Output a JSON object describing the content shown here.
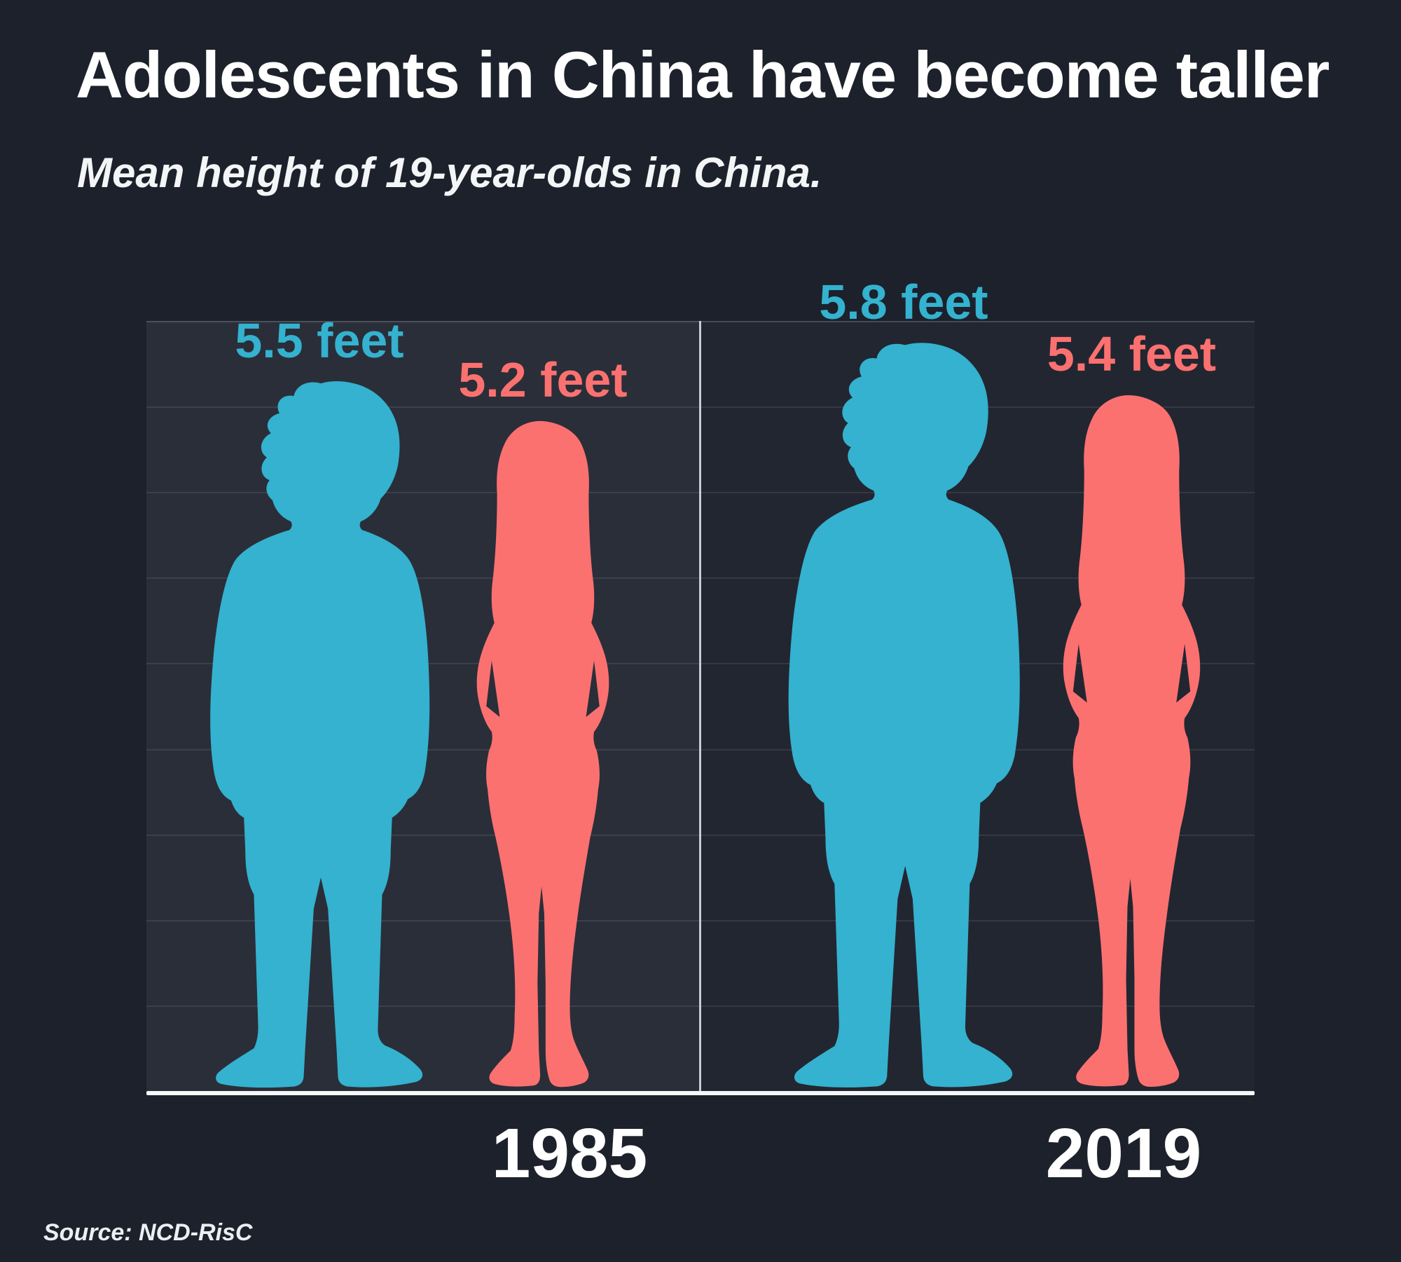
{
  "header": {
    "title": "Adolescents in China have become taller",
    "subtitle": "Mean height of 19-year-olds in China."
  },
  "chart_data": {
    "type": "pictogram-bar",
    "title": "Adolescents in China have become taller",
    "subtitle": "Mean height of 19-year-olds in China.",
    "unit": "feet",
    "categories": [
      "1985",
      "2019"
    ],
    "series": [
      {
        "name": "Male",
        "color": "#34b2cf",
        "values": [
          5.5,
          5.8
        ],
        "labels": [
          "5.5 feet",
          "5.8 feet"
        ]
      },
      {
        "name": "Female",
        "color": "#fb7170",
        "values": [
          5.2,
          5.4
        ],
        "labels": [
          "5.2 feet",
          "5.4 feet"
        ]
      }
    ],
    "ylim": [
      0,
      5.95
    ],
    "grid": "horizontal",
    "legend": "none",
    "value_label_position": "above-figure-head"
  },
  "footer": {
    "source": "Source: NCD-RisC"
  },
  "colors": {
    "background": "#1c212b",
    "panel_left": "#2a2e39",
    "panel_right": "#222631",
    "divider": "#c7ccd4",
    "baseline": "#f4f6f8",
    "male": "#34b2cf",
    "female": "#fb7170",
    "text": "#ffffff"
  }
}
